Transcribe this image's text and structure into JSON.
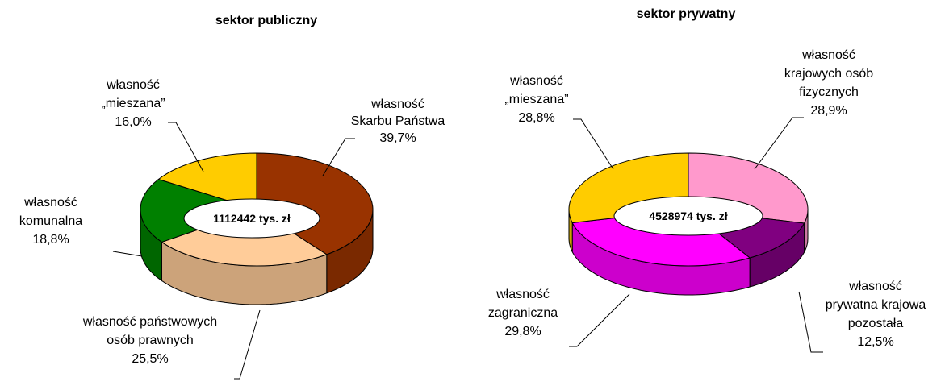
{
  "chart_data": [
    {
      "type": "donut3d",
      "title": "sektor publiczny",
      "center_label": "1112442 tys. zł",
      "categories": [
        [
          "własność",
          "Skarbu Państwa"
        ],
        [
          "własność państwowych",
          "osób prawnych"
        ],
        [
          "własność",
          "komunalna"
        ],
        [
          "własność",
          "„mieszana”"
        ]
      ],
      "values": [
        39.7,
        25.5,
        18.8,
        16.0
      ],
      "value_labels": [
        "39,7%",
        "25,5%",
        "18,8%",
        "16,0%"
      ],
      "colors": [
        "#993300",
        "#ffcc99",
        "#008000",
        "#ffcc00"
      ]
    },
    {
      "type": "donut3d",
      "title": "sektor prywatny",
      "center_label": "4528974 tys. zł",
      "categories": [
        [
          "własność",
          "krajowych osób",
          "fizycznych"
        ],
        [
          "własność",
          "prywatna krajowa",
          "pozostała"
        ],
        [
          "własność",
          "zagraniczna"
        ],
        [
          "własność",
          "„mieszana”"
        ]
      ],
      "values": [
        28.9,
        12.5,
        29.8,
        28.8
      ],
      "value_labels": [
        "28,9%",
        "12,5%",
        "29,8%",
        "28,8%"
      ],
      "colors": [
        "#ff99cc",
        "#800080",
        "#ff00ff",
        "#ffcc00"
      ]
    }
  ]
}
